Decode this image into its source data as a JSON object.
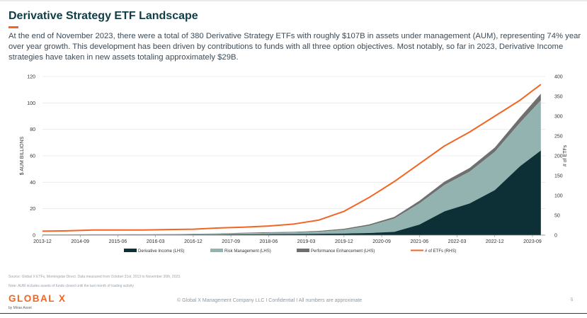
{
  "header": {
    "title": "Derivative Strategy ETF Landscape",
    "subtitle": "At the end of November 2023, there were a total of 380 Derivative Strategy ETFs with roughly $107B in assets under management (AUM), representing 74% year over year growth. This development has been driven by contributions to funds with all three option objectives. Most notably, so far in 2023, Derivative Income strategies have taken in new assets totaling approximately $29B."
  },
  "colors": {
    "derivative_income": "#0c3036",
    "risk_management": "#93b3b1",
    "performance_enhancement": "#6f6f6f",
    "etf_count": "#f26522",
    "accent": "#f26522"
  },
  "chart_data": {
    "type": "area",
    "x": [
      "2013-12",
      "2014-06",
      "2014-12",
      "2015-06",
      "2015-12",
      "2016-06",
      "2016-12",
      "2017-06",
      "2017-12",
      "2018-06",
      "2018-12",
      "2019-06",
      "2019-12",
      "2020-06",
      "2020-12",
      "2021-06",
      "2021-12",
      "2022-06",
      "2022-12",
      "2023-06",
      "2023-11"
    ],
    "x_tick_labels": [
      "2013-12",
      "2014-09",
      "2015-06",
      "2016-03",
      "2016-12",
      "2017-09",
      "2018-06",
      "2019-03",
      "2019-12",
      "2020-09",
      "2021-06",
      "2022-03",
      "2022-12",
      "2023-09"
    ],
    "ylabel": "$ AUM BILLIONS",
    "ylim": [
      0,
      120
    ],
    "y_ticks": [
      0,
      20,
      40,
      60,
      80,
      100,
      120
    ],
    "y2label": "# of ETFs",
    "y2lim": [
      0,
      400
    ],
    "y2_ticks": [
      0,
      50,
      100,
      150,
      200,
      250,
      300,
      350,
      400
    ],
    "stacked": true,
    "series": [
      {
        "name": "Derivative Income (LHS)",
        "axis": "left",
        "style": "area",
        "values": [
          0.2,
          0.2,
          0.3,
          0.3,
          0.3,
          0.3,
          0.4,
          0.5,
          0.6,
          0.7,
          0.8,
          1.0,
          1.2,
          1.6,
          2.5,
          8,
          18,
          24,
          34,
          52,
          64
        ]
      },
      {
        "name": "Risk Management (LHS)",
        "axis": "left",
        "style": "area",
        "values": [
          0.1,
          0.1,
          0.2,
          0.2,
          0.3,
          0.3,
          0.4,
          0.5,
          0.8,
          1.0,
          1.2,
          1.6,
          2.8,
          5.5,
          10,
          16,
          20,
          24,
          29,
          33,
          38
        ]
      },
      {
        "name": "Performance Enhancement (LHS)",
        "axis": "left",
        "style": "area",
        "values": [
          0.1,
          0.1,
          0.1,
          0.1,
          0.1,
          0.2,
          0.2,
          0.3,
          0.4,
          0.5,
          0.5,
          0.6,
          0.8,
          1.0,
          1.3,
          2,
          2.5,
          2.8,
          3.2,
          4,
          5
        ]
      },
      {
        "name": "# of ETFs (RHS)",
        "axis": "right",
        "style": "line",
        "values": [
          10,
          11,
          13,
          13,
          13,
          14,
          15,
          18,
          20,
          23,
          28,
          38,
          60,
          95,
          135,
          180,
          225,
          260,
          300,
          340,
          380
        ]
      }
    ],
    "legend_position": "bottom"
  },
  "footer": {
    "source": "Source: Global X ETFs, Morningstar Direct. Data measured from October 31st, 2013 to November 30th, 2023.",
    "note": "Note: AUM includes assets of funds closed until the last month of trading activity",
    "logo": "GLOBAL X",
    "logo_sub": "by Mirae Asset",
    "center": "© Global X Management Company LLC I Confidential I All numbers are approximate",
    "page": "5"
  }
}
